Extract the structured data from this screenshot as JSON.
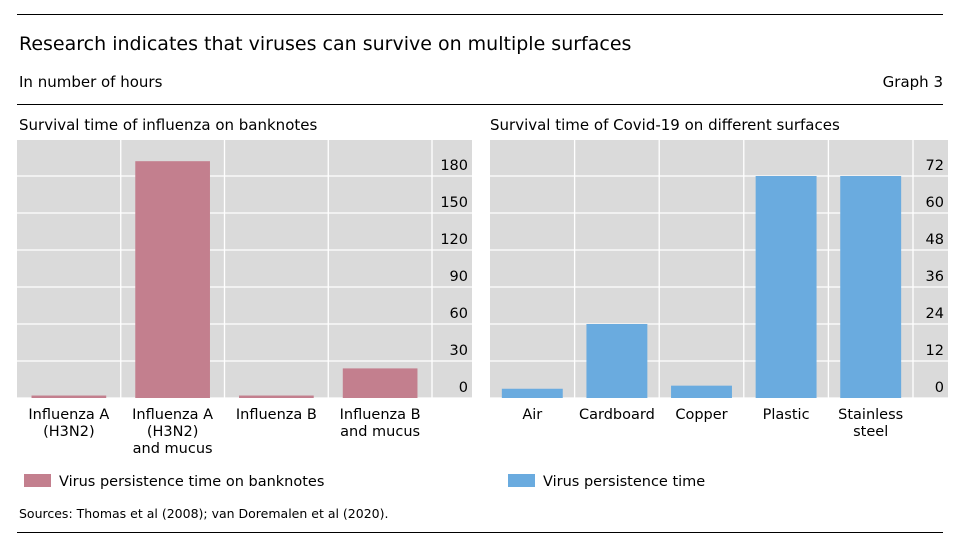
{
  "title": "Research indicates that viruses can survive on multiple surfaces",
  "subtitle": "In number of hours",
  "graph_label": "Graph 3",
  "sources": "Sources: Thomas et al (2008); van Doremalen et al (2020).",
  "colors": {
    "influenza": "#c37f8e",
    "covid": "#6aabdf",
    "plot_bg": "#dadada",
    "grid": "#ffffff"
  },
  "chart_data": [
    {
      "type": "bar",
      "title": "Survival time of influenza on banknotes",
      "categories": [
        [
          "Influenza A",
          "(H3N2)"
        ],
        [
          "Influenza A",
          "(H3N2)",
          "and mucus"
        ],
        [
          "Influenza B"
        ],
        [
          "Influenza B",
          "and mucus"
        ]
      ],
      "series": [
        {
          "name": "Virus persistence time on banknotes",
          "values": [
            2,
            192,
            2,
            24
          ]
        }
      ],
      "ylim": [
        0,
        180
      ],
      "yticks": [
        0,
        30,
        60,
        90,
        120,
        150,
        180
      ],
      "ylabel": "",
      "xlabel": "",
      "grid": true,
      "legend": "bottom-left"
    },
    {
      "type": "bar",
      "title": "Survival time of Covid-19 on different surfaces",
      "categories": [
        [
          "Air"
        ],
        [
          "Cardboard"
        ],
        [
          "Copper"
        ],
        [
          "Plastic"
        ],
        [
          "Stainless",
          "steel"
        ]
      ],
      "series": [
        {
          "name": "Virus persistence time",
          "values": [
            3,
            24,
            4,
            72,
            72
          ]
        }
      ],
      "ylim": [
        0,
        72
      ],
      "yticks": [
        0,
        12,
        24,
        36,
        48,
        60,
        72
      ],
      "ylabel": "",
      "xlabel": "",
      "grid": true,
      "legend": "bottom-left"
    }
  ]
}
